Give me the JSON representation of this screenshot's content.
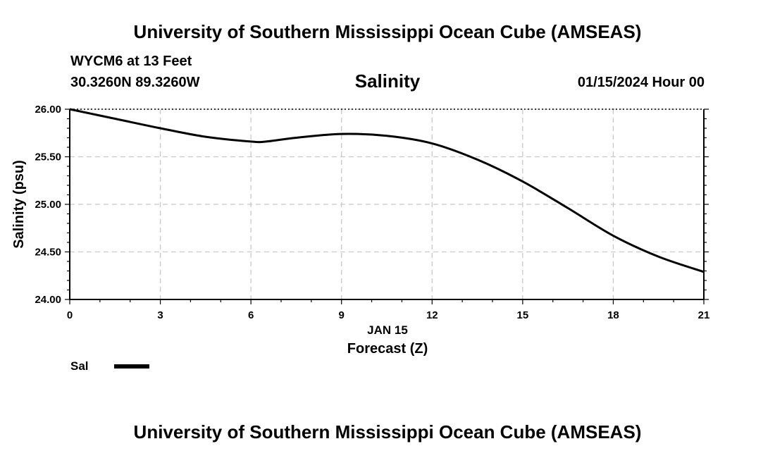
{
  "header": {
    "title": "University of Southern Mississippi Ocean Cube (AMSEAS)",
    "station": "WYCM6 at 13 Feet",
    "coords": "30.3260N  89.3260W",
    "datetime": "01/15/2024 Hour 00"
  },
  "footer": {
    "title": "University of Southern Mississippi Ocean Cube (AMSEAS)"
  },
  "chart_data": {
    "type": "line",
    "title": "Salinity",
    "xlabel": "Forecast (Z)",
    "xsublabel": "JAN 15",
    "ylabel": "Salinity (psu)",
    "xlim": [
      0,
      21
    ],
    "ylim": [
      24.0,
      26.0
    ],
    "xticks": [
      0,
      3,
      6,
      9,
      12,
      15,
      18,
      21
    ],
    "yticks": [
      "24.00",
      "24.50",
      "25.00",
      "25.50",
      "26.00"
    ],
    "grid": true,
    "series": [
      {
        "name": "Sal",
        "color": "#000000",
        "x": [
          0,
          1.5,
          3,
          4.5,
          6,
          6.5,
          7.5,
          9,
          10.5,
          12,
          13.5,
          15,
          16.5,
          18,
          19.5,
          21
        ],
        "y": [
          26.0,
          25.9,
          25.8,
          25.71,
          25.66,
          25.66,
          25.7,
          25.74,
          25.72,
          25.64,
          25.47,
          25.24,
          24.96,
          24.67,
          24.45,
          24.29
        ]
      }
    ]
  }
}
